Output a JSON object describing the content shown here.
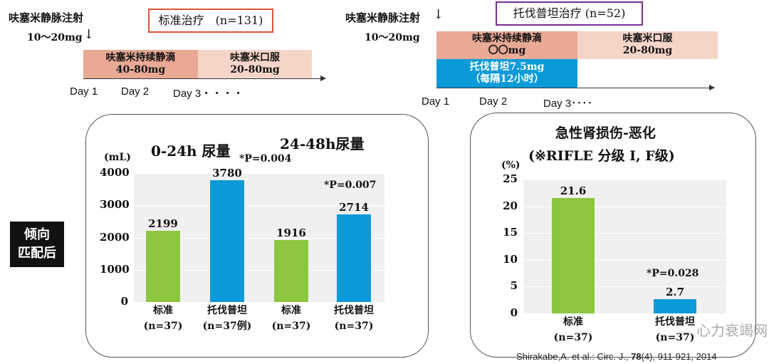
{
  "left_regimen": {
    "bolus": "呋塞米静脉注射",
    "bolus_dose": "10～20mg",
    "title": "标准治疗　(n=131)",
    "title_color": "#e0513a",
    "infusion": "呋塞米持续静滴",
    "infusion_dose": "40-80mg",
    "oral": "呋塞米口服",
    "oral_dose": "20-80mg",
    "days": [
      "Day 1",
      "Day 2",
      "Day 3・・・・"
    ]
  },
  "right_regimen": {
    "bolus": "呋塞米静脉注射",
    "bolus_dose": "10～20mg",
    "title": "托伐普坦治疗 (n=52)",
    "title_color": "#7b2d8e",
    "infusion": "呋塞米持续静滴",
    "infusion_dose": "〇〇mg",
    "oral": "呋塞米口服",
    "oral_dose": "20-80mg",
    "tolvaptan": "托伐普坦7.5mg",
    "tolvaptan_freq": "（每隔12小时）",
    "days": [
      "Day 1",
      "Day 2",
      "Day 3････"
    ]
  },
  "side_label": [
    "倾向",
    "匹配后"
  ],
  "citation_pre": "Shirakabe,A. et al.: Circ. J., ",
  "citation_vol": "78",
  "citation_post": "(4), 911-921, 2014",
  "watermark": "心力衰竭网",
  "colors": {
    "standard": "#8cc63f",
    "tolvaptan": "#0b9ad8",
    "infusion": "#e8a995",
    "oral": "#f6d5c9",
    "tolvaptan_bar": "#0b9ad8"
  },
  "chart_data": [
    {
      "type": "bar",
      "section_titles": [
        "0-24h 尿量",
        "24-48h尿量"
      ],
      "ylabel": "(mL)",
      "ylim": [
        0,
        4000
      ],
      "yticks": [
        "0",
        "1000",
        "2000",
        "3000",
        "4000"
      ],
      "categories": [
        [
          "标准",
          "(n=37)"
        ],
        [
          "托伐普坦",
          "(n=37例)"
        ],
        [
          "标准",
          "(n=37)"
        ],
        [
          "托伐普坦",
          "(n=37)"
        ]
      ],
      "values": [
        2199,
        3780,
        1916,
        2714
      ],
      "groups": [
        "standard",
        "tolvaptan",
        "standard",
        "tolvaptan"
      ],
      "annotations": [
        "*P=0.004",
        "*P=0.007"
      ]
    },
    {
      "type": "bar",
      "title": [
        "急性肾损伤-恶化",
        "(※RIFLE 分级 I, F级)"
      ],
      "ylabel": "(%)",
      "ylim": [
        0,
        25
      ],
      "yticks": [
        "0",
        "5",
        "10",
        "15",
        "20",
        "25"
      ],
      "categories": [
        [
          "标准",
          "(n=37)"
        ],
        [
          "托伐普坦",
          "(n=37)"
        ]
      ],
      "values": [
        21.6,
        2.7
      ],
      "groups": [
        "standard",
        "tolvaptan"
      ],
      "annotations": [
        "*P=0.028"
      ]
    }
  ]
}
